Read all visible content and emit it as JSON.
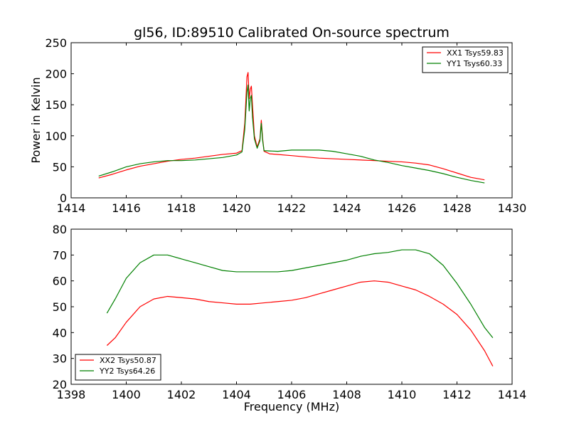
{
  "chart_data": [
    {
      "type": "line",
      "title": "gl56, ID:89510 Calibrated On-source spectrum",
      "xlabel": "",
      "ylabel": "Power in Kelvin",
      "xlim": [
        1414,
        1430
      ],
      "ylim": [
        0,
        250
      ],
      "xticks": [
        1414,
        1416,
        1418,
        1420,
        1422,
        1424,
        1426,
        1428,
        1430
      ],
      "yticks": [
        0,
        50,
        100,
        150,
        200,
        250
      ],
      "legend_position": "top-right",
      "series": [
        {
          "name": "XX1 Tsys59.83",
          "color": "#ff0000",
          "points": [
            [
              1415,
              32
            ],
            [
              1415.5,
              38
            ],
            [
              1416,
              45
            ],
            [
              1416.5,
              51
            ],
            [
              1417,
              55
            ],
            [
              1417.5,
              59
            ],
            [
              1418,
              62
            ],
            [
              1418.5,
              64
            ],
            [
              1419,
              67
            ],
            [
              1419.5,
              70
            ],
            [
              1420,
              72
            ],
            [
              1420.2,
              76
            ],
            [
              1420.3,
              120
            ],
            [
              1420.38,
              195
            ],
            [
              1420.42,
              202
            ],
            [
              1420.46,
              160
            ],
            [
              1420.5,
              175
            ],
            [
              1420.54,
              180
            ],
            [
              1420.58,
              150
            ],
            [
              1420.65,
              100
            ],
            [
              1420.75,
              82
            ],
            [
              1420.85,
              95
            ],
            [
              1420.9,
              125
            ],
            [
              1420.95,
              95
            ],
            [
              1421,
              75
            ],
            [
              1421.2,
              71
            ],
            [
              1422,
              68
            ],
            [
              1423,
              64
            ],
            [
              1424,
              62
            ],
            [
              1425,
              60
            ],
            [
              1426,
              58
            ],
            [
              1426.5,
              56
            ],
            [
              1427,
              53
            ],
            [
              1427.5,
              47
            ],
            [
              1428,
              40
            ],
            [
              1428.5,
              33
            ],
            [
              1429,
              29
            ]
          ]
        },
        {
          "name": "YY1 Tsys60.33",
          "color": "#008000",
          "points": [
            [
              1415,
              35
            ],
            [
              1415.5,
              42
            ],
            [
              1416,
              50
            ],
            [
              1416.5,
              55
            ],
            [
              1417,
              58
            ],
            [
              1417.5,
              60
            ],
            [
              1418,
              60
            ],
            [
              1418.5,
              61
            ],
            [
              1419,
              63
            ],
            [
              1419.5,
              65
            ],
            [
              1420,
              69
            ],
            [
              1420.2,
              74
            ],
            [
              1420.3,
              110
            ],
            [
              1420.38,
              170
            ],
            [
              1420.42,
              182
            ],
            [
              1420.46,
              140
            ],
            [
              1420.5,
              160
            ],
            [
              1420.54,
              165
            ],
            [
              1420.58,
              130
            ],
            [
              1420.65,
              95
            ],
            [
              1420.75,
              80
            ],
            [
              1420.85,
              92
            ],
            [
              1420.9,
              120
            ],
            [
              1420.95,
              92
            ],
            [
              1421,
              76
            ],
            [
              1421.5,
              75
            ],
            [
              1422,
              77
            ],
            [
              1422.5,
              77
            ],
            [
              1423,
              77
            ],
            [
              1423.5,
              75
            ],
            [
              1424,
              71
            ],
            [
              1424.5,
              67
            ],
            [
              1425,
              61
            ],
            [
              1425.5,
              57
            ],
            [
              1426,
              52
            ],
            [
              1426.5,
              48
            ],
            [
              1427,
              44
            ],
            [
              1427.5,
              39
            ],
            [
              1428,
              33
            ],
            [
              1428.5,
              28
            ],
            [
              1429,
              24
            ]
          ]
        }
      ]
    },
    {
      "type": "line",
      "title": "",
      "xlabel": "Frequency (MHz)",
      "ylabel": "",
      "xlim": [
        1398,
        1414
      ],
      "ylim": [
        20,
        80
      ],
      "xticks": [
        1398,
        1400,
        1402,
        1404,
        1406,
        1408,
        1410,
        1412,
        1414
      ],
      "yticks": [
        20,
        30,
        40,
        50,
        60,
        70,
        80
      ],
      "legend_position": "bottom-left",
      "series": [
        {
          "name": "XX2 Tsys50.87",
          "color": "#ff0000",
          "points": [
            [
              1399.3,
              35
            ],
            [
              1399.6,
              38
            ],
            [
              1400,
              44
            ],
            [
              1400.5,
              50
            ],
            [
              1401,
              53
            ],
            [
              1401.5,
              54
            ],
            [
              1402,
              53.5
            ],
            [
              1402.5,
              53
            ],
            [
              1403,
              52
            ],
            [
              1403.5,
              51.5
            ],
            [
              1404,
              51
            ],
            [
              1404.5,
              51
            ],
            [
              1405,
              51.5
            ],
            [
              1405.5,
              52
            ],
            [
              1406,
              52.5
            ],
            [
              1406.5,
              53.5
            ],
            [
              1407,
              55
            ],
            [
              1407.5,
              56.5
            ],
            [
              1408,
              58
            ],
            [
              1408.5,
              59.5
            ],
            [
              1409,
              60
            ],
            [
              1409.5,
              59.5
            ],
            [
              1410,
              58
            ],
            [
              1410.5,
              56.5
            ],
            [
              1411,
              54
            ],
            [
              1411.5,
              51
            ],
            [
              1412,
              47
            ],
            [
              1412.5,
              41
            ],
            [
              1413,
              33
            ],
            [
              1413.3,
              27
            ]
          ]
        },
        {
          "name": "YY2 Tsys64.26",
          "color": "#008000",
          "points": [
            [
              1399.3,
              47.5
            ],
            [
              1399.6,
              53
            ],
            [
              1400,
              61
            ],
            [
              1400.5,
              67
            ],
            [
              1401,
              70
            ],
            [
              1401.5,
              70
            ],
            [
              1402,
              68.5
            ],
            [
              1402.5,
              67
            ],
            [
              1403,
              65.5
            ],
            [
              1403.5,
              64
            ],
            [
              1404,
              63.5
            ],
            [
              1404.5,
              63.5
            ],
            [
              1405,
              63.5
            ],
            [
              1405.5,
              63.5
            ],
            [
              1406,
              64
            ],
            [
              1406.5,
              65
            ],
            [
              1407,
              66
            ],
            [
              1407.5,
              67
            ],
            [
              1408,
              68
            ],
            [
              1408.5,
              69.5
            ],
            [
              1409,
              70.5
            ],
            [
              1409.5,
              71
            ],
            [
              1410,
              72
            ],
            [
              1410.5,
              72
            ],
            [
              1411,
              70.5
            ],
            [
              1411.5,
              66
            ],
            [
              1412,
              59
            ],
            [
              1412.5,
              51
            ],
            [
              1413,
              42
            ],
            [
              1413.3,
              38
            ]
          ]
        }
      ]
    }
  ]
}
